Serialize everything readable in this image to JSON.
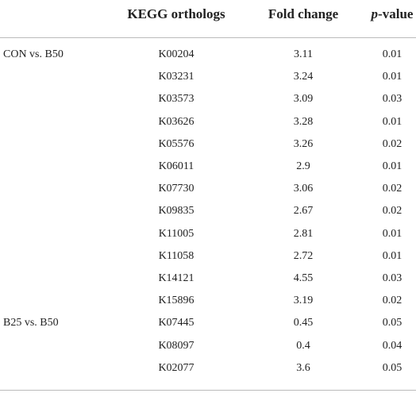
{
  "header": {
    "columns": [
      "KEGG orthologs",
      "Fold change",
      "p-value"
    ]
  },
  "groups": [
    {
      "label": "CON vs. B50",
      "rows": [
        [
          "K00204",
          3.11,
          0.01
        ],
        [
          "K03231",
          3.24,
          0.01
        ],
        [
          "K03573",
          3.09,
          0.03
        ],
        [
          "K03626",
          3.28,
          0.01
        ],
        [
          "K05576",
          3.26,
          0.02
        ],
        [
          "K06011",
          2.9,
          0.01
        ],
        [
          "K07730",
          3.06,
          0.02
        ],
        [
          "K09835",
          2.67,
          0.02
        ],
        [
          "K11005",
          2.81,
          0.01
        ],
        [
          "K11058",
          2.72,
          0.01
        ],
        [
          "K14121",
          4.55,
          0.03
        ],
        [
          "K15896",
          3.19,
          0.02
        ]
      ]
    },
    {
      "label": "B25 vs. B50",
      "rows": [
        [
          "K07445",
          0.45,
          0.05
        ],
        [
          "K08097",
          0.4,
          0.04
        ],
        [
          "K02077",
          3.6,
          0.05
        ]
      ]
    }
  ]
}
